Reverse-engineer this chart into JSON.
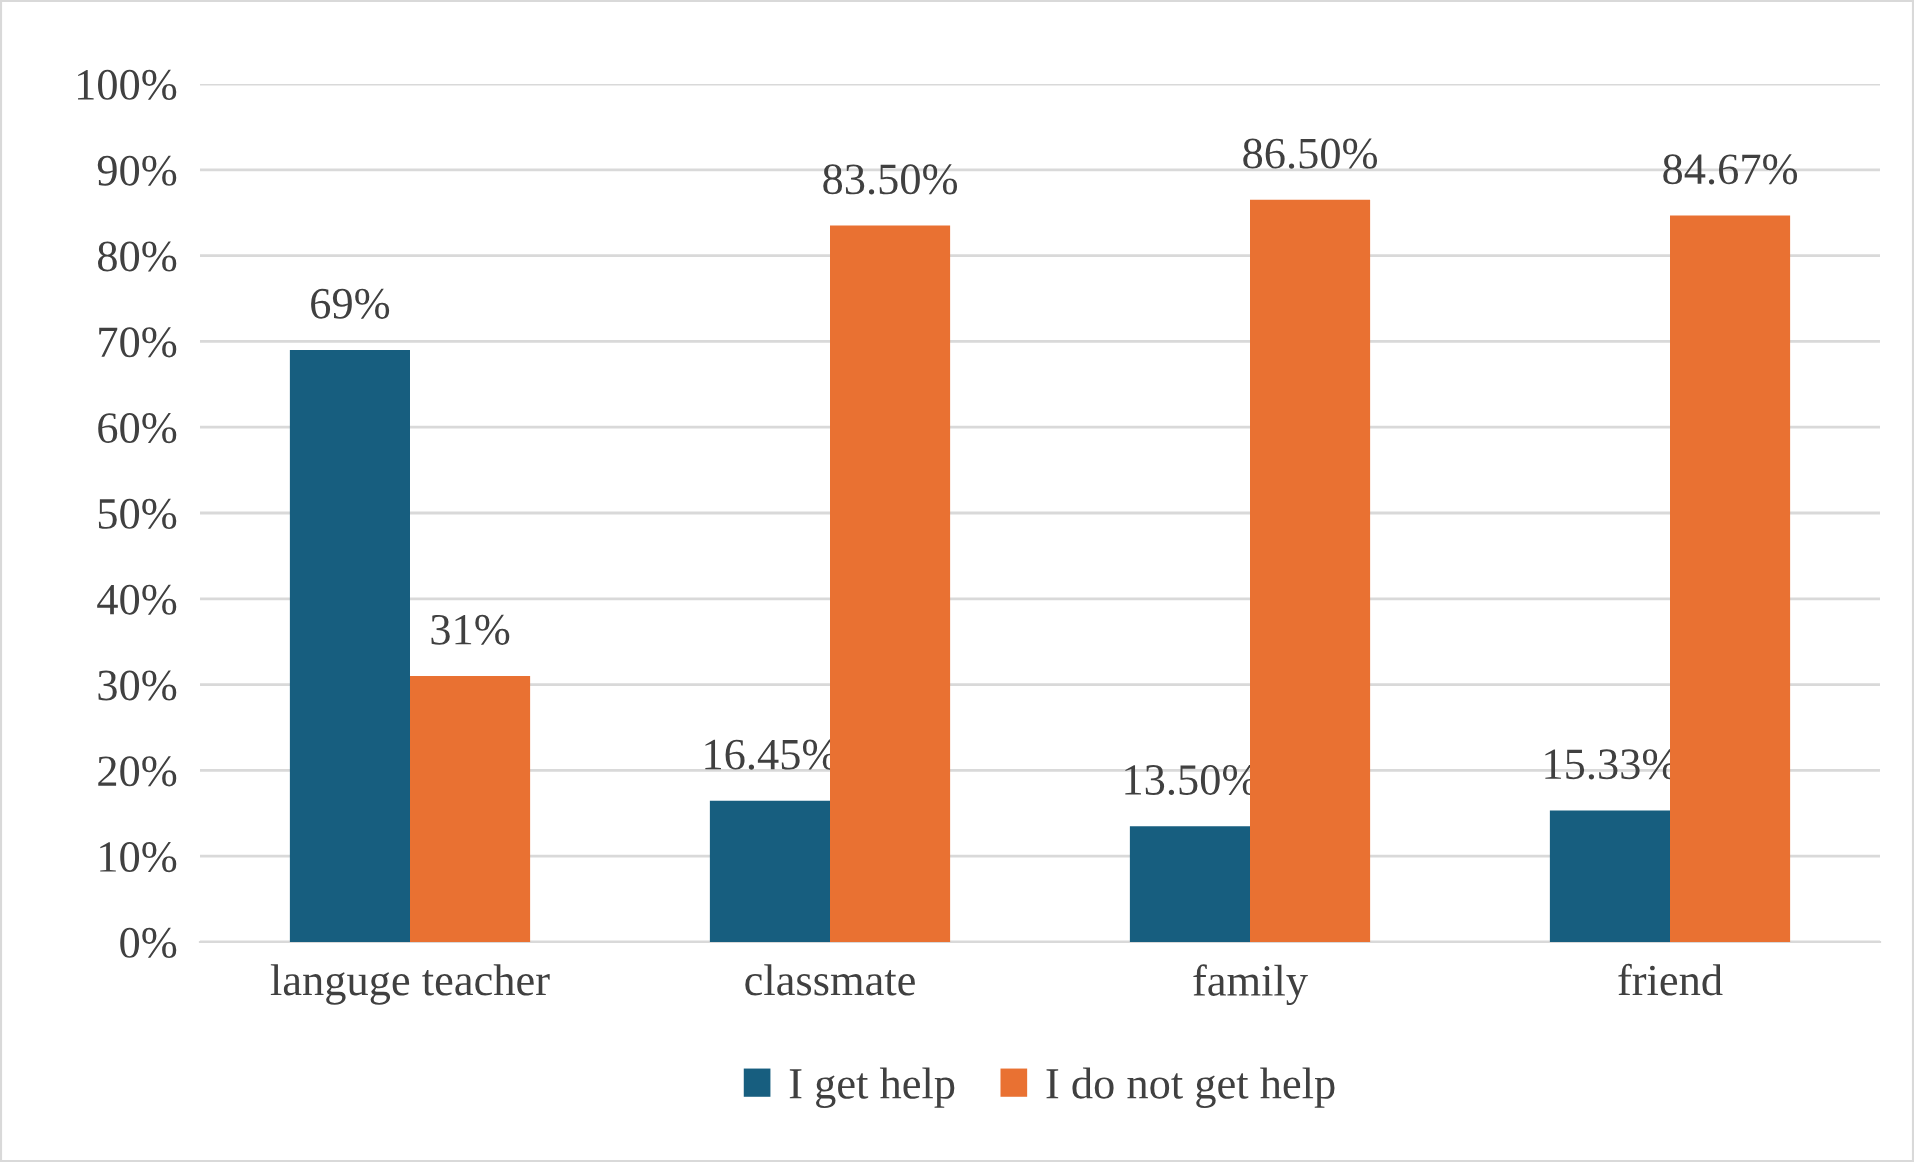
{
  "chart_data": {
    "type": "bar",
    "categories": [
      "languge teacher",
      "classmate",
      "family",
      "friend"
    ],
    "series": [
      {
        "name": "I get help",
        "color": "#175e7f",
        "values": [
          69,
          16.45,
          13.5,
          15.33
        ],
        "value_labels": [
          "69%",
          "16.45%",
          "13.50%",
          "15.33%"
        ]
      },
      {
        "name": "I do not get help",
        "color": "#e97132",
        "values": [
          31,
          83.5,
          86.5,
          84.67
        ],
        "value_labels": [
          "31%",
          "83.50%",
          "86.50%",
          "84.67%"
        ]
      }
    ],
    "ylim": [
      0,
      100
    ],
    "yticks": [
      {
        "value": 0,
        "label": "0%"
      },
      {
        "value": 10,
        "label": "10%"
      },
      {
        "value": 20,
        "label": "20%"
      },
      {
        "value": 30,
        "label": "30%"
      },
      {
        "value": 40,
        "label": "40%"
      },
      {
        "value": 50,
        "label": "50%"
      },
      {
        "value": 60,
        "label": "60%"
      },
      {
        "value": 70,
        "label": "70%"
      },
      {
        "value": 80,
        "label": "80%"
      },
      {
        "value": 90,
        "label": "90%"
      },
      {
        "value": 100,
        "label": "100%"
      }
    ],
    "grid": "y",
    "legend": "bottom"
  }
}
